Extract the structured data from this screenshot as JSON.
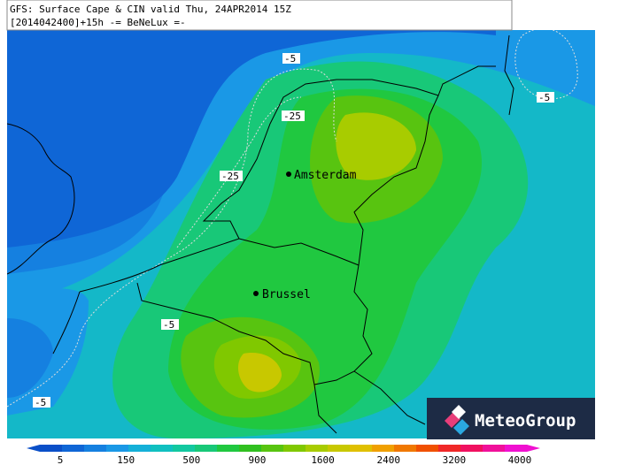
{
  "header": {
    "title": "GFS: Surface Cape & CIN valid Thu, 24APR2014 15Z",
    "subtitle": "[2014042400]+15h -= BeNeLux =-"
  },
  "cities": [
    {
      "label": "Amsterdam"
    },
    {
      "label": "Brussel"
    }
  ],
  "contours": {
    "labels": [
      "-5",
      "-25",
      "-25",
      "-5",
      "-5",
      "-5"
    ]
  },
  "legend": {
    "ticks": [
      5,
      150,
      500,
      900,
      1600,
      2400,
      3200,
      4000
    ],
    "colors": [
      "#0a4fc8",
      "#0f66d6",
      "#1580e0",
      "#1a98e6",
      "#14b0d8",
      "#10c0c0",
      "#12c8a0",
      "#18c878",
      "#20c840",
      "#30c020",
      "#58c410",
      "#80c800",
      "#a8cc00",
      "#c8c800",
      "#e0c000",
      "#f0a000",
      "#f07800",
      "#f05000",
      "#f02828",
      "#f01060",
      "#f0109a",
      "#f010d0"
    ]
  },
  "logo": {
    "text": "MeteoGroup"
  }
}
